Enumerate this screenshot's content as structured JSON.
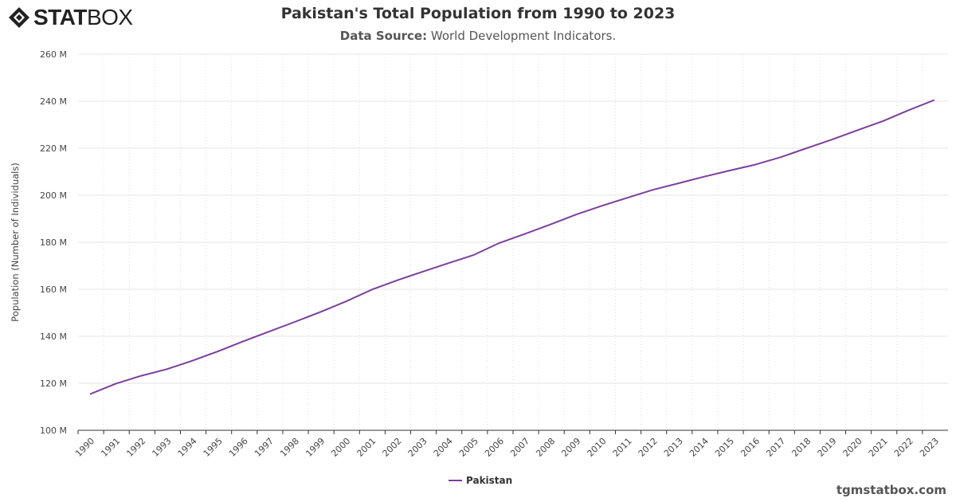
{
  "brand": {
    "logo_bold": "STAT",
    "logo_light": "BOX",
    "footer": "tgmstatbox.com"
  },
  "header": {
    "title": "Pakistan's Total Population from 1990 to 2023",
    "source_label": "Data Source:",
    "source_value": "World Development Indicators."
  },
  "chart_data": {
    "type": "line",
    "title": "Pakistan's Total Population from 1990 to 2023",
    "xlabel": "",
    "ylabel": "Population (Number of Individuals)",
    "ylim": [
      100,
      260
    ],
    "y_unit": "M",
    "yticks": [
      "100 M",
      "120 M",
      "140 M",
      "160 M",
      "180 M",
      "200 M",
      "220 M",
      "240 M",
      "260 M"
    ],
    "grid": true,
    "legend_position": "bottom",
    "x": [
      "1990",
      "1991",
      "1992",
      "1993",
      "1994",
      "1995",
      "1996",
      "1997",
      "1998",
      "1999",
      "2000",
      "2001",
      "2002",
      "2003",
      "2004",
      "2005",
      "2006",
      "2007",
      "2008",
      "2009",
      "2010",
      "2011",
      "2012",
      "2013",
      "2014",
      "2015",
      "2016",
      "2017",
      "2018",
      "2019",
      "2020",
      "2021",
      "2022",
      "2023"
    ],
    "series": [
      {
        "name": "Pakistan",
        "color": "#7b3f9e",
        "values": [
          115.4,
          119.8,
          123.2,
          126.0,
          129.6,
          133.6,
          137.9,
          142.0,
          146.1,
          150.3,
          154.8,
          159.8,
          163.8,
          167.5,
          171.1,
          174.6,
          179.7,
          183.6,
          187.6,
          191.8,
          195.5,
          198.9,
          202.3,
          205.1,
          207.9,
          210.5,
          213.0,
          216.2,
          220.0,
          223.7,
          227.7,
          231.6,
          236.2,
          240.5
        ]
      }
    ]
  }
}
